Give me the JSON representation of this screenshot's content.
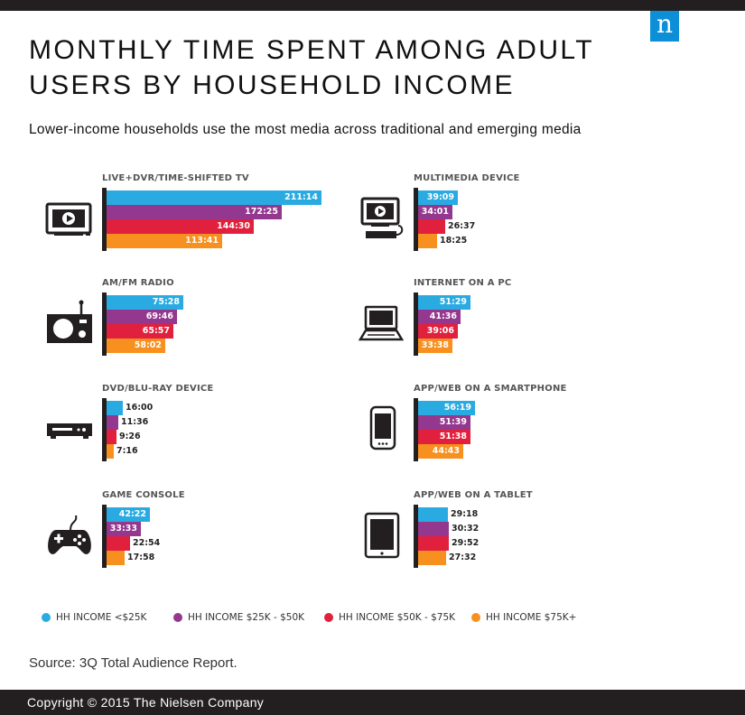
{
  "title": "MONTHLY TIME SPENT AMONG ADULT USERS BY HOUSEHOLD INCOME",
  "subtitle": "Lower-income households use the most media across traditional and emerging media",
  "logo_letter": "n",
  "source": "Source: 3Q Total Audience Report.",
  "copyright": "Copyright © 2015 The Nielsen Company",
  "colors": {
    "<25K": "#29abe2",
    "25K-50K": "#93378f",
    "50K-75K": "#e0203d",
    "75K+": "#f7901e",
    "axis": "#231f20",
    "icon": "#231f20"
  },
  "chart_data": {
    "type": "bar",
    "orientation": "horizontal",
    "unit": "hours:minutes per month",
    "legend": {
      "position": "bottom",
      "entries": [
        "HH INCOME <$25K",
        "HH INCOME $25K - $50K",
        "HH INCOME $50K - $75K",
        "HH INCOME $75K+"
      ]
    },
    "panels": [
      {
        "label": "LIVE+DVR/TIME-SHIFTED TV",
        "icon": "tv-icon",
        "values": [
          211.23,
          172.42,
          144.5,
          113.68
        ],
        "labels": [
          "211:14",
          "172:25",
          "144:30",
          "113:41"
        ]
      },
      {
        "label": "MULTIMEDIA DEVICE",
        "icon": "multimedia-device-icon",
        "values": [
          39.15,
          34.02,
          26.62,
          18.42
        ],
        "labels": [
          "39:09",
          "34:01",
          "26:37",
          "18:25"
        ]
      },
      {
        "label": "AM/FM RADIO",
        "icon": "radio-icon",
        "values": [
          75.47,
          69.77,
          65.95,
          58.03
        ],
        "labels": [
          "75:28",
          "69:46",
          "65:57",
          "58:02"
        ]
      },
      {
        "label": "INTERNET ON A PC",
        "icon": "laptop-icon",
        "values": [
          51.48,
          41.6,
          39.1,
          33.63
        ],
        "labels": [
          "51:29",
          "41:36",
          "39:06",
          "33:38"
        ]
      },
      {
        "label": "DVD/BLU-RAY DEVICE",
        "icon": "dvd-player-icon",
        "values": [
          16.0,
          11.6,
          9.43,
          7.27
        ],
        "labels": [
          "16:00",
          "11:36",
          "9:26",
          "7:16"
        ]
      },
      {
        "label": "APP/WEB ON A SMARTPHONE",
        "icon": "smartphone-icon",
        "values": [
          56.32,
          51.65,
          51.63,
          44.72
        ],
        "labels": [
          "56:19",
          "51:39",
          "51:38",
          "44:43"
        ]
      },
      {
        "label": "GAME CONSOLE",
        "icon": "game-controller-icon",
        "values": [
          42.37,
          33.55,
          22.9,
          17.97
        ],
        "labels": [
          "42:22",
          "33:33",
          "22:54",
          "17:58"
        ]
      },
      {
        "label": "APP/WEB ON A TABLET",
        "icon": "tablet-icon",
        "values": [
          29.3,
          30.53,
          29.87,
          27.53
        ],
        "labels": [
          "29:18",
          "30:32",
          "29:52",
          "27:32"
        ]
      }
    ]
  }
}
